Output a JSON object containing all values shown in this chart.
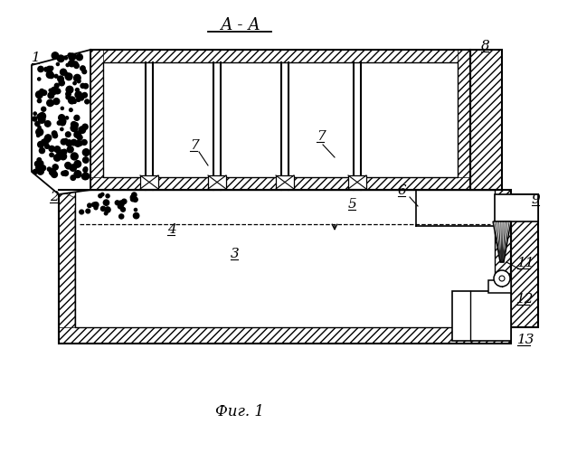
{
  "title": "А - А",
  "fig_label": "Фиг. 1",
  "bg_color": "#ffffff",
  "line_color": "#000000",
  "figsize": [
    6.38,
    5.0
  ],
  "dpi": 100
}
